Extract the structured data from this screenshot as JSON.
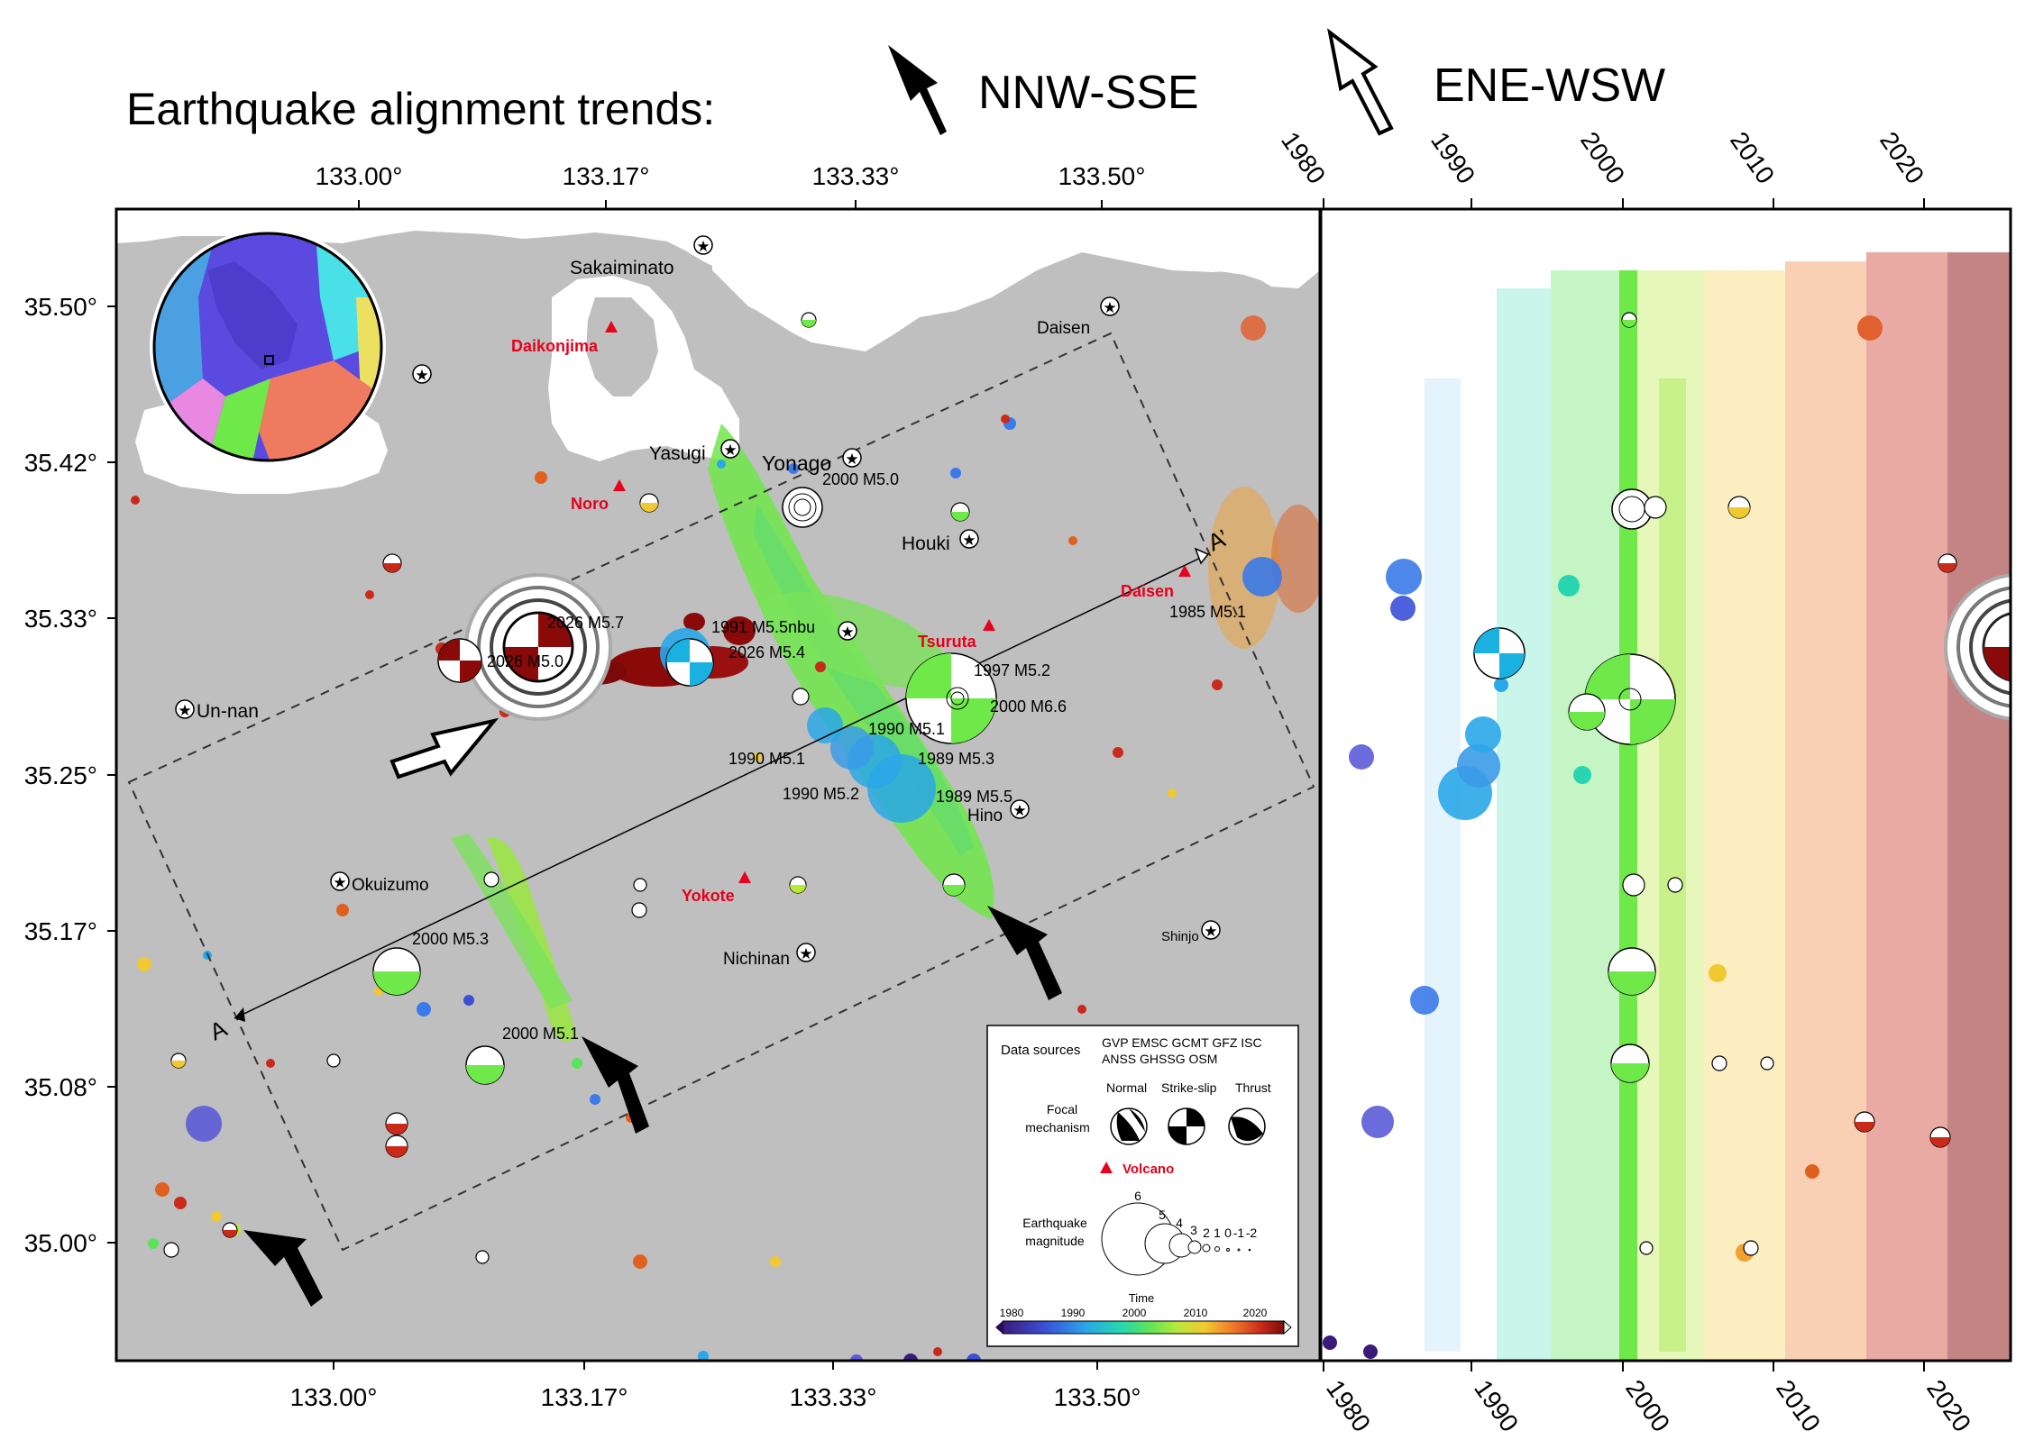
{
  "header": {
    "title": "Earthquake alignment trends:",
    "trend_nnw": "NNW-SSE",
    "trend_ene": "ENE-WSW"
  },
  "map": {
    "lon_ticks": [
      "133.00°",
      "133.17°",
      "133.33°",
      "133.50°"
    ],
    "lat_ticks": [
      "35.50°",
      "35.42°",
      "35.33°",
      "35.25°",
      "35.17°",
      "35.08°",
      "35.00°"
    ],
    "places": [
      {
        "name": "Sakaiminato",
        "lon": 133.24,
        "lat": 35.545
      },
      {
        "name": "Daisen",
        "lon": 133.5,
        "lat": 35.5
      },
      {
        "name": "Yasugi",
        "lon": 133.26,
        "lat": 35.425
      },
      {
        "name": "Yonago",
        "lon": 133.33,
        "lat": 35.42
      },
      {
        "name": "Houki",
        "lon": 133.41,
        "lat": 35.375
      },
      {
        "name": "Un-nan",
        "lon": 132.89,
        "lat": 35.29
      },
      {
        "name": "Okuizumo",
        "lon": 133.01,
        "lat": 35.19
      },
      {
        "name": "Hino",
        "lon": 133.44,
        "lat": 35.23
      },
      {
        "name": "Nichinan",
        "lon": 133.3,
        "lat": 35.15
      },
      {
        "name": "Shinjo",
        "lon": 133.57,
        "lat": 35.16
      }
    ],
    "volcanoes": [
      {
        "name": "Daikonjima",
        "lon": 133.16,
        "lat": 35.49
      },
      {
        "name": "Noro",
        "lon": 133.15,
        "lat": 35.41
      },
      {
        "name": "Daisen",
        "lon": 133.55,
        "lat": 35.35
      },
      {
        "name": "Tsuruta",
        "lon": 133.42,
        "lat": 35.32
      },
      {
        "name": "Yokote",
        "lon": 133.28,
        "lat": 35.2
      }
    ],
    "event_labels": [
      "2000 M5.0",
      "2026 M5.7",
      "2026 M5.0",
      "1991 M5.5nbu",
      "2026 M5.4",
      "1997 M5.2",
      "2000 M6.6",
      "1990 M5.1",
      "1990 M5.1",
      "1989 M5.3",
      "1990 M5.2",
      "1989 M5.5",
      "1985 M5.1",
      "2000 M5.3",
      "2000 M5.1"
    ],
    "profile_start": "A",
    "profile_end": "A’"
  },
  "legend": {
    "sources_label": "Data sources",
    "sources_line1": "GVP EMSC GCMT GFZ ISC",
    "sources_line2": "ANSS GHSSG OSM",
    "mechanism_label_1": "Focal",
    "mechanism_label_2": "mechanism",
    "mech_types": [
      "Normal",
      "Strike-slip",
      "Thrust"
    ],
    "volcano_label": "Volcano",
    "magnitude_label_1": "Earthquake",
    "magnitude_label_2": "magnitude",
    "magnitudes": [
      "6",
      "5",
      "4",
      "3",
      "2",
      "1",
      "0",
      "-1",
      "-2"
    ],
    "time_title": "Time",
    "time_ticks": [
      "1980",
      "1990",
      "2000",
      "2010",
      "2020"
    ]
  },
  "timeline": {
    "ticks": [
      "1980",
      "1990",
      "2000",
      "2010",
      "2020"
    ]
  },
  "colors": {
    "land": "#bfbfbf",
    "sea": "#ffffff",
    "volcano": "#e8001c",
    "volcano_label": "#e8001c"
  }
}
